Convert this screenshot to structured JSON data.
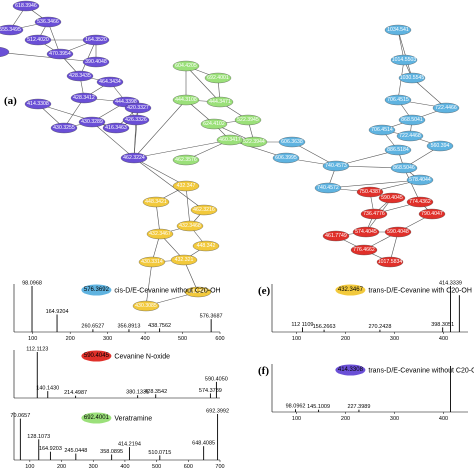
{
  "panel_labels": {
    "a": "(a)",
    "e": "(e)",
    "f": "(f)"
  },
  "colors": {
    "purple": "#6a4fd6",
    "green": "#9be07a",
    "blue": "#5fb3e0",
    "yellow": "#f2c93c",
    "red": "#e0302a",
    "edge": "#555555"
  },
  "network": {
    "nodes": [
      {
        "id": "p1",
        "label": "555.3495",
        "group": "purple"
      },
      {
        "id": "p2",
        "label": "618.3946",
        "group": "purple"
      },
      {
        "id": "p3",
        "label": "536.3466",
        "group": "purple"
      },
      {
        "id": "p4",
        "label": "512.4020",
        "group": "purple"
      },
      {
        "id": "p5",
        "label": "470.3954",
        "group": "purple"
      },
      {
        "id": "p6",
        "label": "164.3520",
        "group": "purple"
      },
      {
        "id": "p7",
        "label": "390.4048",
        "group": "purple"
      },
      {
        "id": "p8",
        "label": "",
        "group": "purple"
      },
      {
        "id": "p9",
        "label": "428.3435",
        "group": "purple"
      },
      {
        "id": "p10",
        "label": "464.3434",
        "group": "purple"
      },
      {
        "id": "p11",
        "label": "428.3412",
        "group": "purple"
      },
      {
        "id": "p12",
        "label": "444.3398",
        "group": "purple"
      },
      {
        "id": "p13",
        "label": "430.3289",
        "group": "purple"
      },
      {
        "id": "p14",
        "label": "430.3255",
        "group": "purple"
      },
      {
        "id": "p15",
        "label": "414.3308",
        "group": "purple"
      },
      {
        "id": "p16",
        "label": "416.3463",
        "group": "purple"
      },
      {
        "id": "p17",
        "label": "426.3326",
        "group": "purple"
      },
      {
        "id": "p18",
        "label": "420.3327",
        "group": "purple"
      },
      {
        "id": "p19",
        "label": "462.3224",
        "group": "purple"
      },
      {
        "id": "g1",
        "label": "604.4205",
        "group": "green"
      },
      {
        "id": "g2",
        "label": "692.4001",
        "group": "green"
      },
      {
        "id": "g3",
        "label": "444.3108",
        "group": "green"
      },
      {
        "id": "g4",
        "label": "444.3471",
        "group": "green"
      },
      {
        "id": "g5",
        "label": "522.3945",
        "group": "green"
      },
      {
        "id": "g6",
        "label": "624.4102",
        "group": "green"
      },
      {
        "id": "g7",
        "label": "522.3944",
        "group": "green"
      },
      {
        "id": "g8",
        "label": "460.3417",
        "group": "green"
      },
      {
        "id": "g9",
        "label": "462.3576",
        "group": "green"
      },
      {
        "id": "b1",
        "label": "1034.541",
        "group": "blue"
      },
      {
        "id": "b2",
        "label": "1014.5503",
        "group": "blue"
      },
      {
        "id": "b3",
        "label": "1030.5545",
        "group": "blue"
      },
      {
        "id": "b4",
        "label": "722.4466",
        "group": "blue"
      },
      {
        "id": "b5",
        "label": "706.4515",
        "group": "blue"
      },
      {
        "id": "b6",
        "label": "868.5041",
        "group": "blue"
      },
      {
        "id": "b7",
        "label": "706.4514",
        "group": "blue"
      },
      {
        "id": "b8",
        "label": "722.4468",
        "group": "blue"
      },
      {
        "id": "b9",
        "label": "606.3638",
        "group": "blue"
      },
      {
        "id": "b10",
        "label": "886.5184",
        "group": "blue"
      },
      {
        "id": "b11",
        "label": "560.394",
        "group": "blue"
      },
      {
        "id": "b12",
        "label": "740.4573",
        "group": "blue"
      },
      {
        "id": "b13",
        "label": "868.5046",
        "group": "blue"
      },
      {
        "id": "b14",
        "label": "606.3995",
        "group": "blue"
      },
      {
        "id": "b15",
        "label": "578.4044",
        "group": "blue"
      },
      {
        "id": "b16",
        "label": "740.4572",
        "group": "blue"
      },
      {
        "id": "y1",
        "label": "432.347",
        "group": "yellow"
      },
      {
        "id": "y2",
        "label": "462.3216",
        "group": "yellow"
      },
      {
        "id": "y3",
        "label": "448.3421",
        "group": "yellow"
      },
      {
        "id": "y4",
        "label": "432.3468",
        "group": "yellow"
      },
      {
        "id": "y5",
        "label": "432.3467",
        "group": "yellow"
      },
      {
        "id": "y6",
        "label": "448.342",
        "group": "yellow"
      },
      {
        "id": "y7",
        "label": "432.321",
        "group": "yellow"
      },
      {
        "id": "y8",
        "label": "430.3314",
        "group": "yellow"
      },
      {
        "id": "y9",
        "label": "430.3085",
        "group": "yellow"
      },
      {
        "id": "y10",
        "label": "432.347",
        "group": "yellow"
      },
      {
        "id": "r1",
        "label": "750.4387",
        "group": "red"
      },
      {
        "id": "r2",
        "label": "590.4045",
        "group": "red"
      },
      {
        "id": "r3",
        "label": "736.4776",
        "group": "red"
      },
      {
        "id": "r4",
        "label": "774.4362",
        "group": "red"
      },
      {
        "id": "r5",
        "label": "790.4047",
        "group": "red"
      },
      {
        "id": "r6",
        "label": "574.4045",
        "group": "red"
      },
      {
        "id": "r7",
        "label": "461.7749",
        "group": "red"
      },
      {
        "id": "r8",
        "label": "590.4048",
        "group": "red"
      },
      {
        "id": "r9",
        "label": "776.4662",
        "group": "red"
      },
      {
        "id": "r10",
        "label": "1017.5834",
        "group": "red"
      }
    ],
    "edges": [
      [
        "p1",
        "p3"
      ],
      [
        "p2",
        "p3"
      ],
      [
        "p1",
        "p2"
      ],
      [
        "p3",
        "p4"
      ],
      [
        "p3",
        "p5"
      ],
      [
        "p4",
        "p5"
      ],
      [
        "p5",
        "p6"
      ],
      [
        "p4",
        "p6"
      ],
      [
        "p6",
        "p7"
      ],
      [
        "p7",
        "p8"
      ],
      [
        "p5",
        "p9"
      ],
      [
        "p6",
        "p9"
      ],
      [
        "p9",
        "p10"
      ],
      [
        "p10",
        "p11"
      ],
      [
        "p9",
        "p11"
      ],
      [
        "p11",
        "p12"
      ],
      [
        "p10",
        "p12"
      ],
      [
        "p12",
        "p13"
      ],
      [
        "p11",
        "p14"
      ],
      [
        "p13",
        "p14"
      ],
      [
        "p14",
        "p15"
      ],
      [
        "p13",
        "p16"
      ],
      [
        "p15",
        "p16"
      ],
      [
        "p12",
        "p17"
      ],
      [
        "p16",
        "p17"
      ],
      [
        "p17",
        "p18"
      ],
      [
        "p16",
        "p18"
      ],
      [
        "p17",
        "p19"
      ],
      [
        "p18",
        "p19"
      ],
      [
        "p13",
        "p19"
      ],
      [
        "p19",
        "g3"
      ],
      [
        "p19",
        "g8"
      ],
      [
        "p19",
        "y1"
      ],
      [
        "p19",
        "y2"
      ],
      [
        "g1",
        "g2"
      ],
      [
        "g1",
        "g3"
      ],
      [
        "g1",
        "g4"
      ],
      [
        "g2",
        "g4"
      ],
      [
        "g3",
        "g4"
      ],
      [
        "g4",
        "g5"
      ],
      [
        "g3",
        "g6"
      ],
      [
        "g6",
        "g5"
      ],
      [
        "g5",
        "g7"
      ],
      [
        "g6",
        "g7"
      ],
      [
        "g7",
        "g8"
      ],
      [
        "g6",
        "g8"
      ],
      [
        "g8",
        "g9"
      ],
      [
        "g7",
        "b9"
      ],
      [
        "g8",
        "b14"
      ],
      [
        "b1",
        "b2"
      ],
      [
        "b2",
        "b3"
      ],
      [
        "b1",
        "b3"
      ],
      [
        "b2",
        "b5"
      ],
      [
        "b3",
        "b4"
      ],
      [
        "b4",
        "b5"
      ],
      [
        "b5",
        "b6"
      ],
      [
        "b4",
        "b6"
      ],
      [
        "b6",
        "b7"
      ],
      [
        "b6",
        "b8"
      ],
      [
        "b7",
        "b8"
      ],
      [
        "b7",
        "b10"
      ],
      [
        "b8",
        "b11"
      ],
      [
        "b9",
        "b12"
      ],
      [
        "b10",
        "b12"
      ],
      [
        "b10",
        "b13"
      ],
      [
        "b12",
        "b13"
      ],
      [
        "b13",
        "b11"
      ],
      [
        "b13",
        "b15"
      ],
      [
        "b12",
        "b16"
      ],
      [
        "b14",
        "b12"
      ],
      [
        "b15",
        "b16"
      ],
      [
        "b16",
        "r1"
      ],
      [
        "b15",
        "r1"
      ],
      [
        "b13",
        "r4"
      ],
      [
        "r1",
        "r2"
      ],
      [
        "r1",
        "r3"
      ],
      [
        "r2",
        "r3"
      ],
      [
        "r3",
        "r4"
      ],
      [
        "r4",
        "r5"
      ],
      [
        "r2",
        "r6"
      ],
      [
        "r3",
        "r6"
      ],
      [
        "r6",
        "r7"
      ],
      [
        "r6",
        "r8"
      ],
      [
        "r5",
        "r8"
      ],
      [
        "r8",
        "r9"
      ],
      [
        "r7",
        "r9"
      ],
      [
        "r9",
        "r10"
      ],
      [
        "r8",
        "r10"
      ],
      [
        "y1",
        "y3"
      ],
      [
        "y1",
        "y4"
      ],
      [
        "y2",
        "y4"
      ],
      [
        "y3",
        "y5"
      ],
      [
        "y4",
        "y5"
      ],
      [
        "y4",
        "y6"
      ],
      [
        "y5",
        "y7"
      ],
      [
        "y6",
        "y7"
      ],
      [
        "y7",
        "y8"
      ],
      [
        "y5",
        "y8"
      ],
      [
        "y8",
        "y9"
      ],
      [
        "y7",
        "y10"
      ],
      [
        "y9",
        "y10"
      ]
    ]
  },
  "chart_data": [
    {
      "type": "spectrum",
      "id": "d",
      "title": "cis-D/E-Cevanine without C20-OH",
      "badge": {
        "label": "576.3692",
        "color": "blue"
      },
      "xlim": [
        50,
        600
      ],
      "xticks": [
        100,
        200,
        300,
        400,
        500,
        600
      ],
      "peaks": [
        {
          "x": 98.0968,
          "y": 1.0,
          "label": "98.0968"
        },
        {
          "x": 164.9204,
          "y": 0.38,
          "label": "164.9204"
        },
        {
          "x": 260.6527,
          "y": 0.06,
          "label": "260.6527"
        },
        {
          "x": 356.8913,
          "y": 0.06,
          "label": "356.8913"
        },
        {
          "x": 438.7562,
          "y": 0.08,
          "label": "438.7562"
        },
        {
          "x": 576.3687,
          "y": 0.28,
          "label": "576.3687"
        }
      ]
    },
    {
      "type": "spectrum",
      "id": "b",
      "title": "Cevanine N-oxide",
      "badge": {
        "label": "590.4045",
        "color": "red"
      },
      "xlim": [
        50,
        600
      ],
      "xticks": [],
      "peaks": [
        {
          "x": 112.1123,
          "y": 1.0,
          "label": "112.1123"
        },
        {
          "x": 140.143,
          "y": 0.15,
          "label": "140.1430"
        },
        {
          "x": 214.4987,
          "y": 0.05,
          "label": "214.4987"
        },
        {
          "x": 380.1331,
          "y": 0.06,
          "label": "380.1331"
        },
        {
          "x": 428.3542,
          "y": 0.08,
          "label": "428.3542"
        },
        {
          "x": 574.3789,
          "y": 0.1,
          "label": "574.3789"
        },
        {
          "x": 590.405,
          "y": 0.35,
          "label": "590.4050"
        }
      ]
    },
    {
      "type": "spectrum",
      "id": "c",
      "title": "Veratramine",
      "badge": {
        "label": "692.4001",
        "color": "green"
      },
      "xlim": [
        50,
        700
      ],
      "xticks": [
        100,
        200,
        300,
        400,
        500,
        600,
        700
      ],
      "peaks": [
        {
          "x": 70.0657,
          "y": 0.9,
          "label": "70.0657"
        },
        {
          "x": 128.1073,
          "y": 0.45,
          "label": "128.1073"
        },
        {
          "x": 164.9203,
          "y": 0.18,
          "label": "164.9203"
        },
        {
          "x": 245.0448,
          "y": 0.14,
          "label": "245.0448"
        },
        {
          "x": 358.0895,
          "y": 0.12,
          "label": "358.0895"
        },
        {
          "x": 414.2194,
          "y": 0.28,
          "label": "414.2194"
        },
        {
          "x": 510.0715,
          "y": 0.1,
          "label": "510.0715"
        },
        {
          "x": 648.4085,
          "y": 0.3,
          "label": "648.4085"
        },
        {
          "x": 692.3992,
          "y": 1.0,
          "label": "692.3992"
        }
      ]
    },
    {
      "type": "spectrum",
      "id": "e",
      "title": "trans-D/E-Cevanine with C20-OH",
      "badge": {
        "label": "432.3467",
        "color": "yellow"
      },
      "xlim": [
        50,
        450
      ],
      "xticks": [
        100,
        200,
        300,
        400
      ],
      "peaks": [
        {
          "x": 112.1109,
          "y": 0.1,
          "label": "112 1109"
        },
        {
          "x": 156.2663,
          "y": 0.05,
          "label": "156.2663"
        },
        {
          "x": 270.2428,
          "y": 0.05,
          "label": "270.2428"
        },
        {
          "x": 398.3051,
          "y": 0.1,
          "label": "398.3051"
        },
        {
          "x": 414.3339,
          "y": 1.0,
          "label": "414.3339"
        },
        {
          "x": 432.35,
          "y": 0.8,
          "label": ""
        }
      ]
    },
    {
      "type": "spectrum",
      "id": "f",
      "title": "trans-D/E-Cevanine without C20-OH",
      "badge": {
        "label": "414.3308",
        "color": "purple"
      },
      "xlim": [
        50,
        450
      ],
      "xticks": [
        100,
        200,
        300,
        400
      ],
      "peaks": [
        {
          "x": 98.0962,
          "y": 0.06,
          "label": "98.0962"
        },
        {
          "x": 145.1009,
          "y": 0.05,
          "label": "145.1009"
        },
        {
          "x": 227.3989,
          "y": 0.05,
          "label": "227.3989"
        },
        {
          "x": 414.33,
          "y": 1.0,
          "label": ""
        }
      ]
    }
  ]
}
